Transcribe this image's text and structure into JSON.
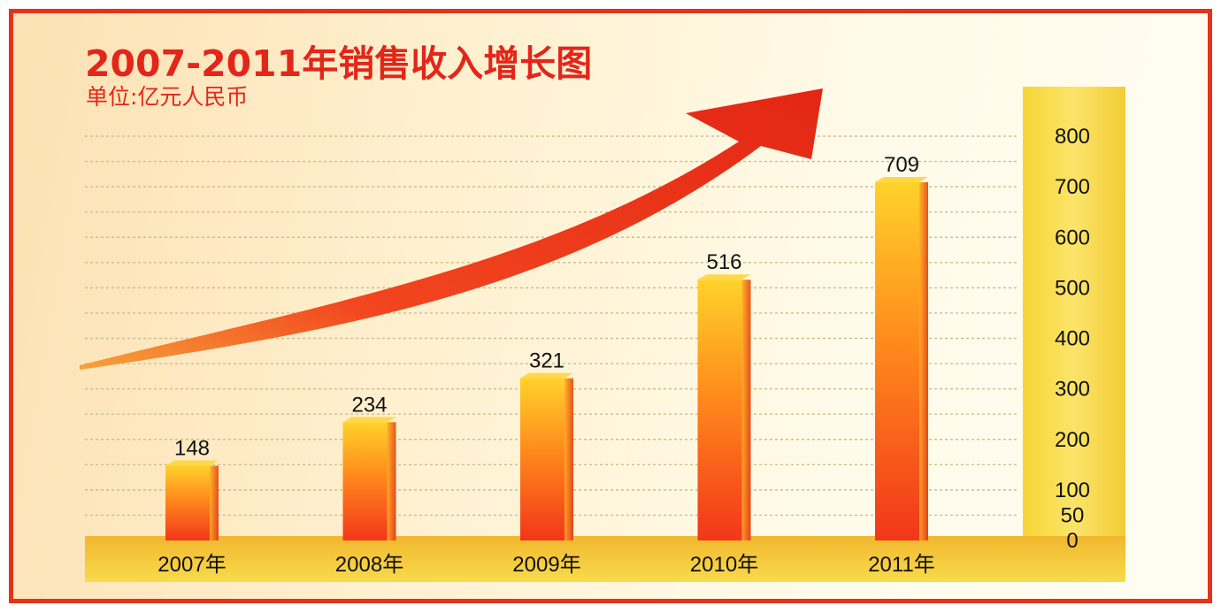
{
  "chart_data": {
    "type": "bar",
    "title": "2007-2011年销售收入增长图",
    "subtitle": "单位:亿元人民币",
    "categories": [
      "2007年",
      "2008年",
      "2009年",
      "2010年",
      "2011年"
    ],
    "values": [
      148,
      234,
      321,
      516,
      709
    ],
    "data_labels": [
      "148",
      "234",
      "321",
      "516",
      "709"
    ],
    "ylim": [
      0,
      800
    ],
    "yticks": [
      "0",
      "50",
      "100",
      "200",
      "300",
      "400",
      "500",
      "600",
      "700",
      "800"
    ],
    "ytick_values": [
      0,
      50,
      100,
      200,
      300,
      400,
      500,
      600,
      700,
      800
    ],
    "y_axis_position": "right",
    "grid": true,
    "trend_arrow": true,
    "colors": {
      "bar_light": "#ffd22a",
      "bar_mid": "#ff8a1c",
      "bar_dark": "#f2361a",
      "arrow": "#ee2e19",
      "frame": "#e4321b",
      "axis_panel": "#f8d640",
      "floor": "#f6d03a",
      "grid": "#c9c08a",
      "text": "#111111"
    }
  }
}
